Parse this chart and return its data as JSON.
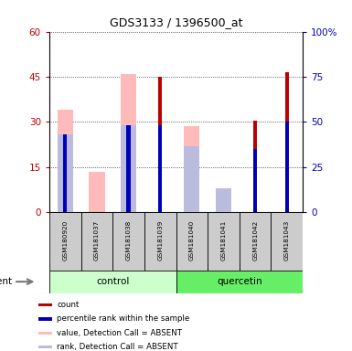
{
  "title": "GDS3133 / 1396500_at",
  "samples": [
    "GSM180920",
    "GSM181037",
    "GSM181038",
    "GSM181039",
    "GSM181040",
    "GSM181041",
    "GSM181042",
    "GSM181043"
  ],
  "count_values": [
    0,
    0,
    0,
    45,
    0,
    0,
    30.5,
    46.5
  ],
  "percentile_rank_values": [
    26,
    0,
    29,
    29,
    0,
    0,
    21,
    30
  ],
  "value_absent": [
    34,
    13.5,
    46,
    0,
    28.5,
    4,
    0,
    0
  ],
  "rank_absent": [
    26,
    0,
    29,
    0,
    22,
    8,
    0,
    0
  ],
  "ylim_left": [
    0,
    60
  ],
  "ylim_right": [
    0,
    100
  ],
  "yticks_left": [
    0,
    15,
    30,
    45,
    60
  ],
  "yticks_right": [
    0,
    25,
    50,
    75,
    100
  ],
  "ytick_labels_left": [
    "0",
    "15",
    "30",
    "45",
    "60"
  ],
  "ytick_labels_right": [
    "0",
    "25",
    "50",
    "75",
    "100%"
  ],
  "color_count": "#bb0000",
  "color_percentile": "#0000bb",
  "color_value_absent": "#ffbbbb",
  "color_rank_absent": "#bbbbdd",
  "wide_bar_width": 0.5,
  "narrow_bar_width": 0.12,
  "control_color": "#ccffcc",
  "quercetin_color": "#66ee66",
  "legend_labels": [
    "count",
    "percentile rank within the sample",
    "value, Detection Call = ABSENT",
    "rank, Detection Call = ABSENT"
  ],
  "legend_colors": [
    "#bb0000",
    "#0000bb",
    "#ffbbbb",
    "#bbbbdd"
  ]
}
